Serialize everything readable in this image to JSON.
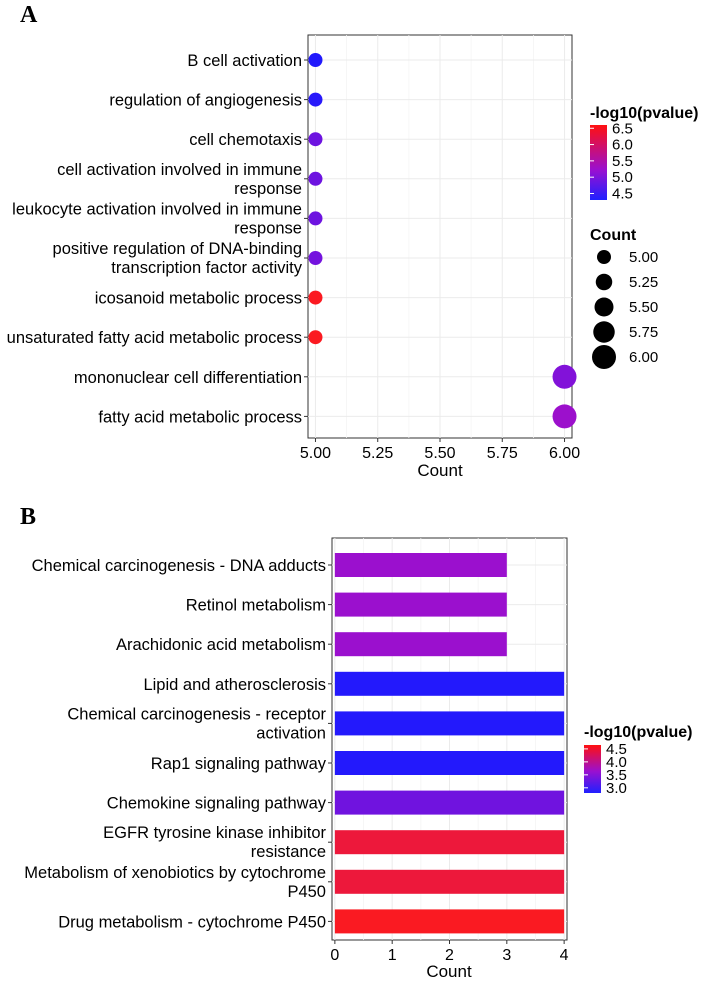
{
  "chart_data": [
    {
      "panel": "A",
      "type": "scatter",
      "xlabel": "Count",
      "xlim": [
        4.97,
        6.03
      ],
      "xticks": [
        "5.00",
        "5.25",
        "5.50",
        "5.75",
        "6.00"
      ],
      "categories": [
        "B cell activation",
        "regulation of angiogenesis",
        "cell chemotaxis",
        "cell activation involved in immune response",
        "leukocyte activation involved in immune response",
        "positive regulation of DNA-binding transcription factor activity",
        "icosanoid metabolic process",
        "unsaturated fatty acid metabolic process",
        "mononuclear cell differentiation",
        "fatty acid metabolic process"
      ],
      "category_lines": [
        [
          "B cell activation"
        ],
        [
          "regulation of angiogenesis"
        ],
        [
          "cell chemotaxis"
        ],
        [
          "cell activation involved in immune",
          "response"
        ],
        [
          "leukocyte activation involved in immune",
          "response"
        ],
        [
          "positive regulation of DNA-binding",
          "transcription factor activity"
        ],
        [
          "icosanoid metabolic process"
        ],
        [
          "unsaturated fatty acid metabolic process"
        ],
        [
          "mononuclear cell differentiation"
        ],
        [
          "fatty acid metabolic process"
        ]
      ],
      "count": [
        5,
        5,
        5,
        5,
        5,
        5,
        5,
        5,
        6,
        6
      ],
      "neg_log10_pvalue": [
        4.35,
        4.4,
        4.9,
        4.9,
        4.9,
        4.95,
        6.55,
        6.55,
        5.05,
        5.25
      ],
      "color_legend": {
        "title": "-log10(pvalue)",
        "ticks": [
          "6.5",
          "6.0",
          "5.5",
          "5.0",
          "4.5"
        ],
        "range": [
          4.3,
          6.6
        ],
        "low_color": "#1a1aff",
        "high_color": "#ff1a1a"
      },
      "size_legend": {
        "title": "Count",
        "ticks": [
          "5.00",
          "5.25",
          "5.50",
          "5.75",
          "6.00"
        ]
      }
    },
    {
      "panel": "B",
      "type": "bar",
      "xlabel": "Count",
      "xlim": [
        -0.05,
        4.05
      ],
      "xticks": [
        "0",
        "1",
        "2",
        "3",
        "4"
      ],
      "categories": [
        "Chemical carcinogenesis - DNA adducts",
        "Retinol metabolism",
        "Arachidonic acid metabolism",
        "Lipid and atherosclerosis",
        "Chemical carcinogenesis - receptor activation",
        "Rap1 signaling pathway",
        "Chemokine signaling pathway",
        "EGFR tyrosine kinase inhibitor resistance",
        "Metabolism of xenobiotics by cytochrome P450",
        "Drug metabolism - cytochrome P450"
      ],
      "category_lines": [
        [
          "Chemical carcinogenesis - DNA adducts"
        ],
        [
          "Retinol metabolism"
        ],
        [
          "Arachidonic acid metabolism"
        ],
        [
          "Lipid and atherosclerosis"
        ],
        [
          "Chemical carcinogenesis - receptor",
          "activation"
        ],
        [
          "Rap1 signaling pathway"
        ],
        [
          "Chemokine signaling pathway"
        ],
        [
          "EGFR tyrosine kinase inhibitor",
          "resistance"
        ],
        [
          "Metabolism of xenobiotics by cytochrome",
          "P450"
        ],
        [
          "Drug metabolism - cytochrome P450"
        ]
      ],
      "values": [
        3,
        3,
        3,
        4,
        4,
        4,
        4,
        4,
        4,
        4
      ],
      "neg_log10_pvalue": [
        3.55,
        3.55,
        3.55,
        2.85,
        2.85,
        2.85,
        3.3,
        4.45,
        4.45,
        4.6
      ],
      "color_legend": {
        "title": "-log10(pvalue)",
        "ticks": [
          "4.5",
          "4.0",
          "3.5",
          "3.0"
        ],
        "range": [
          2.8,
          4.65
        ],
        "low_color": "#1a1aff",
        "high_color": "#ff1a1a"
      }
    }
  ],
  "panels": {
    "a_label": "A",
    "b_label": "B"
  }
}
